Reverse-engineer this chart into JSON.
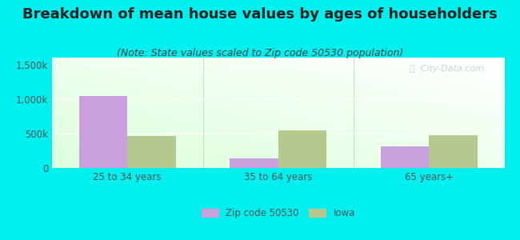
{
  "title": "Breakdown of mean house values by ages of householders",
  "subtitle": "(Note: State values scaled to Zip code 50530 population)",
  "categories": [
    "25 to 34 years",
    "35 to 64 years",
    "65 years+"
  ],
  "zip_values": [
    1040000,
    140000,
    310000
  ],
  "iowa_values": [
    460000,
    540000,
    480000
  ],
  "ylim": [
    0,
    1600000
  ],
  "yticks": [
    0,
    500000,
    1000000,
    1500000
  ],
  "ytick_labels": [
    "0",
    "500k",
    "1,000k",
    "1,500k"
  ],
  "zip_color": "#c9a0dc",
  "iowa_color": "#b5c98e",
  "background_color": "#00f0f0",
  "legend_zip": "Zip code 50530",
  "legend_iowa": "Iowa",
  "bar_width": 0.32,
  "watermark": "City-Data.com",
  "title_fontsize": 13,
  "subtitle_fontsize": 9,
  "tick_label_fontsize": 8.5,
  "title_color": "#222222",
  "subtitle_color": "#444444",
  "tick_color": "#555555"
}
